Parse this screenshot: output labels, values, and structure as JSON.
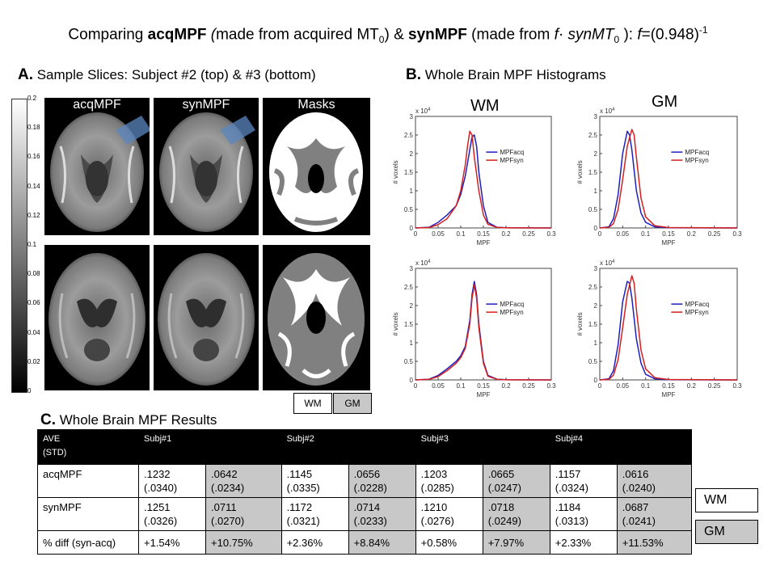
{
  "title": {
    "prefix": "Comparing ",
    "acq": "acqMPF",
    "acq_paren_open": " (",
    "acq_desc": "made  from acquired MT",
    "acq_sub": "0",
    "acq_close": ") & ",
    "syn": "synMPF",
    "syn_desc": " (made  from ",
    "f1": "f",
    "dot": "· ",
    "synmt": "synMT",
    "synmt_sub": "0",
    "close": " ): ",
    "f2": "f",
    "eq": "=(0.948)",
    "sup": "-1"
  },
  "section_a": {
    "letter": "A.",
    "text": " Sample Slices: Subject #2 (top) & #3 (bottom)"
  },
  "section_b": {
    "letter": "B.",
    "text": " Whole Brain MPF Histograms"
  },
  "section_c": {
    "letter": "C.",
    "text": " Whole Brain MPF Results"
  },
  "colorbar": {
    "ticks": [
      "0.2",
      "0.18",
      "0.16",
      "0.14",
      "0.12",
      "0.1",
      "0.08",
      "0.06",
      "0.04",
      "0.02",
      "0"
    ]
  },
  "slices": {
    "labels": [
      "acqMPF",
      "synMPF",
      "Masks"
    ]
  },
  "mask_legend": {
    "wm": "WM",
    "gm": "GM",
    "wm_color": "#ffffff",
    "gm_color": "#c8c8c8"
  },
  "histograms": {
    "col_titles": [
      "WM",
      "GM"
    ],
    "xlabel": "MPF",
    "ylabel": "# voxels",
    "y_exp": "x 10",
    "y_exp_sup": "4",
    "xticks": [
      "0",
      "0.05",
      "0.1",
      "0.15",
      "0.2",
      "0.25",
      "0.3"
    ],
    "yticks": [
      "0",
      "0.5",
      "1",
      "1.5",
      "2",
      "2.5",
      "3"
    ],
    "legend": [
      "MPFacq",
      "MPFsyn"
    ],
    "colors": {
      "acq": "#1f1fbf",
      "syn": "#d42020"
    }
  },
  "chart_data": [
    {
      "type": "line",
      "panel": "WM top",
      "xlim": [
        0,
        0.3
      ],
      "ylim": [
        0,
        30000
      ],
      "series": [
        {
          "name": "MPFacq",
          "x": [
            0,
            0.03,
            0.05,
            0.07,
            0.09,
            0.1,
            0.11,
            0.12,
            0.125,
            0.13,
            0.135,
            0.14,
            0.15,
            0.16,
            0.18,
            0.2,
            0.3
          ],
          "values": [
            0,
            200,
            1500,
            3500,
            6000,
            9000,
            14000,
            21000,
            24500,
            25000,
            22000,
            15000,
            6000,
            1500,
            200,
            50,
            0
          ]
        },
        {
          "name": "MPFsyn",
          "x": [
            0,
            0.03,
            0.05,
            0.07,
            0.09,
            0.1,
            0.11,
            0.115,
            0.12,
            0.125,
            0.13,
            0.14,
            0.15,
            0.16,
            0.18,
            0.2,
            0.3
          ],
          "values": [
            0,
            100,
            900,
            2500,
            6000,
            10000,
            17000,
            22000,
            26000,
            25000,
            19000,
            10000,
            3500,
            1000,
            150,
            30,
            0
          ]
        }
      ]
    },
    {
      "type": "line",
      "panel": "GM top",
      "xlim": [
        0,
        0.3
      ],
      "ylim": [
        0,
        30000
      ],
      "series": [
        {
          "name": "MPFacq",
          "x": [
            0,
            0.02,
            0.03,
            0.04,
            0.05,
            0.06,
            0.065,
            0.07,
            0.08,
            0.09,
            0.1,
            0.12,
            0.15,
            0.3
          ],
          "values": [
            0,
            300,
            2500,
            9000,
            20000,
            26000,
            25000,
            21000,
            10000,
            4000,
            1500,
            300,
            50,
            0
          ]
        },
        {
          "name": "MPFsyn",
          "x": [
            0,
            0.02,
            0.03,
            0.04,
            0.05,
            0.06,
            0.07,
            0.075,
            0.08,
            0.09,
            0.1,
            0.12,
            0.15,
            0.3
          ],
          "values": [
            0,
            150,
            1200,
            5000,
            13000,
            22000,
            26500,
            25000,
            19000,
            8000,
            3000,
            600,
            100,
            0
          ]
        }
      ]
    },
    {
      "type": "line",
      "panel": "WM bottom",
      "xlim": [
        0,
        0.3
      ],
      "ylim": [
        0,
        30000
      ],
      "series": [
        {
          "name": "MPFacq",
          "x": [
            0,
            0.03,
            0.05,
            0.07,
            0.09,
            0.1,
            0.11,
            0.12,
            0.125,
            0.13,
            0.135,
            0.14,
            0.15,
            0.16,
            0.18,
            0.2,
            0.3
          ],
          "values": [
            0,
            200,
            1200,
            3000,
            5000,
            6500,
            9000,
            16000,
            23000,
            26500,
            23000,
            15000,
            5000,
            1200,
            200,
            50,
            0
          ]
        },
        {
          "name": "MPFsyn",
          "x": [
            0,
            0.03,
            0.05,
            0.07,
            0.09,
            0.1,
            0.11,
            0.12,
            0.125,
            0.13,
            0.135,
            0.14,
            0.15,
            0.16,
            0.18,
            0.2,
            0.3
          ],
          "values": [
            0,
            150,
            900,
            2500,
            4500,
            6000,
            8500,
            15000,
            22000,
            25500,
            22000,
            14000,
            4500,
            1000,
            150,
            30,
            0
          ]
        }
      ]
    },
    {
      "type": "line",
      "panel": "GM bottom",
      "xlim": [
        0,
        0.3
      ],
      "ylim": [
        0,
        30000
      ],
      "series": [
        {
          "name": "MPFacq",
          "x": [
            0,
            0.02,
            0.03,
            0.04,
            0.05,
            0.06,
            0.065,
            0.07,
            0.08,
            0.09,
            0.1,
            0.12,
            0.15,
            0.3
          ],
          "values": [
            0,
            300,
            2500,
            9500,
            21000,
            26500,
            26000,
            22000,
            11000,
            4500,
            1500,
            300,
            50,
            0
          ]
        },
        {
          "name": "MPFsyn",
          "x": [
            0,
            0.02,
            0.03,
            0.04,
            0.05,
            0.06,
            0.07,
            0.075,
            0.08,
            0.09,
            0.1,
            0.12,
            0.15,
            0.3
          ],
          "values": [
            0,
            150,
            1300,
            5500,
            14000,
            23000,
            28000,
            26000,
            19000,
            8000,
            3000,
            600,
            100,
            0
          ]
        }
      ]
    }
  ],
  "table": {
    "header": [
      "AVE\n(STD)",
      "Subj#1",
      "",
      "Subj#2",
      "",
      "Subj#3",
      "",
      "Subj#4",
      ""
    ],
    "rows": [
      {
        "label": "acqMPF",
        "cells": [
          ".1232\n(.0340)",
          ".0642\n(.0234)",
          ".1145\n(.0335)",
          ".0656\n(.0228)",
          ".1203\n(.0285)",
          ".0665\n(.0247)",
          ".1157\n(.0324)",
          ".0616\n(.0240)"
        ]
      },
      {
        "label": "synMPF",
        "cells": [
          ".1251\n(.0326)",
          ".0711\n(.0270)",
          ".1172\n(.0321)",
          ".0714\n(.0233)",
          ".1210\n(.0276)",
          ".0718\n(.0249)",
          ".1184\n(.0313)",
          ".0687\n(.0241)"
        ]
      },
      {
        "label": "% diff (syn-acq)",
        "cells": [
          "+1.54%",
          "+10.75%",
          "+2.36%",
          "+8.84%",
          "+0.58%",
          "+7.97%",
          "+2.33%",
          "+11.53%"
        ]
      }
    ]
  },
  "table_legend": {
    "wm": "WM",
    "gm": "GM"
  }
}
